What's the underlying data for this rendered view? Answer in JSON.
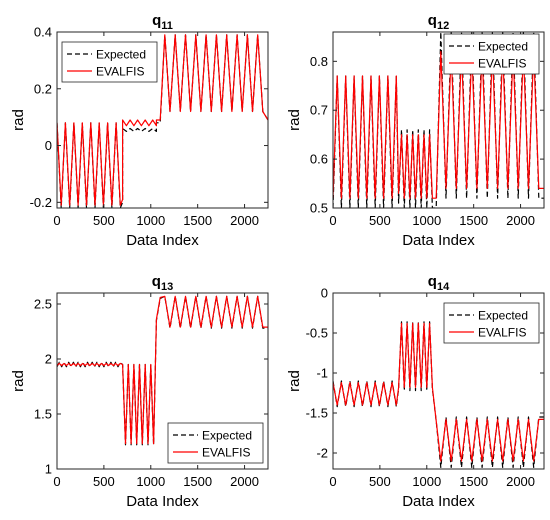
{
  "chart_data": [
    {
      "type": "line",
      "title_base": "q",
      "title_sub": "11",
      "xlabel": "Data Index",
      "ylabel": "rad",
      "xlim": [
        0,
        2250
      ],
      "ylim": [
        -0.22,
        0.4
      ],
      "xticks": [
        "0",
        "500",
        "1000",
        "1500",
        "2000"
      ],
      "yticks": [
        "-0.2",
        "0",
        "0.2",
        "0.4"
      ],
      "legend_position": "top-left",
      "series": [
        {
          "name": "Expected",
          "color": "#000000",
          "style": "dashed",
          "x": [
            0,
            45,
            90,
            135,
            180,
            225,
            270,
            315,
            360,
            405,
            450,
            495,
            540,
            585,
            630,
            675,
            700,
            700,
            740,
            780,
            820,
            860,
            900,
            940,
            980,
            1020,
            1060,
            1060,
            1100,
            1150,
            1205,
            1260,
            1315,
            1370,
            1425,
            1480,
            1535,
            1590,
            1645,
            1700,
            1755,
            1810,
            1865,
            1920,
            1975,
            2030,
            2085,
            2140,
            2195,
            2250
          ],
          "y": [
            0.08,
            -0.22,
            0.08,
            -0.22,
            0.08,
            -0.22,
            0.08,
            -0.22,
            0.08,
            -0.22,
            0.08,
            -0.22,
            0.08,
            -0.22,
            0.08,
            -0.22,
            -0.2,
            0.06,
            0.05,
            0.06,
            0.05,
            0.06,
            0.05,
            0.06,
            0.05,
            0.06,
            0.05,
            0.08,
            0.08,
            0.39,
            0.12,
            0.39,
            0.12,
            0.39,
            0.12,
            0.39,
            0.12,
            0.39,
            0.12,
            0.39,
            0.12,
            0.39,
            0.12,
            0.39,
            0.12,
            0.39,
            0.12,
            0.39,
            0.12,
            0.09
          ]
        },
        {
          "name": "EVALFIS",
          "color": "#ff0000",
          "style": "solid",
          "x": [
            0,
            45,
            90,
            135,
            180,
            225,
            270,
            315,
            360,
            405,
            450,
            495,
            540,
            585,
            630,
            675,
            700,
            700,
            740,
            780,
            820,
            860,
            900,
            940,
            980,
            1020,
            1060,
            1060,
            1100,
            1150,
            1205,
            1260,
            1315,
            1370,
            1425,
            1480,
            1535,
            1590,
            1645,
            1700,
            1755,
            1810,
            1865,
            1920,
            1975,
            2030,
            2085,
            2140,
            2195,
            2250
          ],
          "y": [
            0.08,
            -0.21,
            0.08,
            -0.21,
            0.08,
            -0.21,
            0.08,
            -0.21,
            0.08,
            -0.21,
            0.08,
            -0.21,
            0.08,
            -0.21,
            0.08,
            -0.21,
            -0.19,
            0.09,
            0.07,
            0.09,
            0.07,
            0.09,
            0.07,
            0.09,
            0.07,
            0.09,
            0.07,
            0.09,
            0.09,
            0.39,
            0.12,
            0.39,
            0.12,
            0.39,
            0.12,
            0.39,
            0.12,
            0.39,
            0.12,
            0.39,
            0.12,
            0.39,
            0.12,
            0.39,
            0.12,
            0.39,
            0.12,
            0.39,
            0.12,
            0.09
          ]
        }
      ]
    },
    {
      "type": "line",
      "title_base": "q",
      "title_sub": "12",
      "xlabel": "Data Index",
      "ylabel": "rad",
      "xlim": [
        0,
        2250
      ],
      "ylim": [
        0.5,
        0.86
      ],
      "xticks": [
        "0",
        "500",
        "1000",
        "1500",
        "2000"
      ],
      "yticks": [
        "0.5",
        "0.6",
        "0.7",
        "0.8"
      ],
      "legend_position": "top-right",
      "series": [
        {
          "name": "Expected",
          "color": "#000000",
          "style": "dashed",
          "x": [
            0,
            45,
            90,
            135,
            180,
            225,
            270,
            315,
            360,
            405,
            450,
            495,
            540,
            585,
            630,
            675,
            700,
            730,
            760,
            790,
            820,
            850,
            880,
            910,
            940,
            970,
            1000,
            1030,
            1060,
            1100,
            1150,
            1205,
            1260,
            1315,
            1370,
            1425,
            1480,
            1535,
            1590,
            1645,
            1700,
            1755,
            1810,
            1865,
            1920,
            1975,
            2030,
            2085,
            2140,
            2195,
            2250
          ],
          "y": [
            0.5,
            0.77,
            0.5,
            0.77,
            0.5,
            0.77,
            0.5,
            0.77,
            0.5,
            0.77,
            0.5,
            0.77,
            0.5,
            0.77,
            0.5,
            0.77,
            0.51,
            0.66,
            0.5,
            0.66,
            0.5,
            0.66,
            0.5,
            0.66,
            0.5,
            0.66,
            0.5,
            0.66,
            0.5,
            0.5,
            0.86,
            0.52,
            0.86,
            0.52,
            0.86,
            0.52,
            0.86,
            0.52,
            0.86,
            0.52,
            0.86,
            0.52,
            0.86,
            0.52,
            0.86,
            0.52,
            0.86,
            0.52,
            0.86,
            0.52,
            0.52
          ]
        },
        {
          "name": "EVALFIS",
          "color": "#ff0000",
          "style": "solid",
          "x": [
            0,
            45,
            90,
            135,
            180,
            225,
            270,
            315,
            360,
            405,
            450,
            495,
            540,
            585,
            630,
            675,
            700,
            730,
            760,
            790,
            820,
            850,
            880,
            910,
            940,
            970,
            1000,
            1030,
            1060,
            1100,
            1150,
            1205,
            1260,
            1315,
            1370,
            1425,
            1480,
            1535,
            1590,
            1645,
            1700,
            1755,
            1810,
            1865,
            1920,
            1975,
            2030,
            2085,
            2140,
            2195,
            2250
          ],
          "y": [
            0.52,
            0.77,
            0.52,
            0.77,
            0.52,
            0.77,
            0.52,
            0.77,
            0.52,
            0.77,
            0.52,
            0.77,
            0.52,
            0.77,
            0.52,
            0.77,
            0.53,
            0.65,
            0.52,
            0.65,
            0.52,
            0.65,
            0.52,
            0.65,
            0.52,
            0.65,
            0.52,
            0.65,
            0.52,
            0.52,
            0.82,
            0.54,
            0.82,
            0.54,
            0.82,
            0.54,
            0.82,
            0.54,
            0.82,
            0.54,
            0.82,
            0.54,
            0.82,
            0.54,
            0.82,
            0.54,
            0.82,
            0.54,
            0.82,
            0.54,
            0.54
          ]
        }
      ]
    },
    {
      "type": "line",
      "title_base": "q",
      "title_sub": "13",
      "xlabel": "Data Index",
      "ylabel": "rad",
      "xlim": [
        0,
        2250
      ],
      "ylim": [
        1,
        2.6
      ],
      "xticks": [
        "0",
        "500",
        "1000",
        "1500",
        "2000"
      ],
      "yticks": [
        "1",
        "1.5",
        "2",
        "2.5"
      ],
      "legend_position": "bottom-right",
      "series": [
        {
          "name": "Expected",
          "color": "#000000",
          "style": "dashed",
          "x": [
            0,
            25,
            50,
            75,
            100,
            125,
            150,
            175,
            200,
            225,
            250,
            275,
            300,
            325,
            350,
            375,
            400,
            425,
            450,
            475,
            500,
            525,
            550,
            575,
            600,
            625,
            650,
            675,
            700,
            730,
            760,
            790,
            820,
            850,
            880,
            910,
            940,
            970,
            1000,
            1030,
            1060,
            1100,
            1150,
            1205,
            1260,
            1315,
            1370,
            1425,
            1480,
            1535,
            1590,
            1645,
            1700,
            1755,
            1810,
            1865,
            1920,
            1975,
            2030,
            2085,
            2140,
            2195,
            2250
          ],
          "y": [
            1.93,
            1.97,
            1.93,
            1.97,
            1.93,
            1.97,
            1.93,
            1.97,
            1.93,
            1.97,
            1.93,
            1.97,
            1.93,
            1.97,
            1.93,
            1.97,
            1.93,
            1.97,
            1.93,
            1.97,
            1.93,
            1.97,
            1.93,
            1.97,
            1.93,
            1.97,
            1.93,
            1.97,
            1.95,
            1.22,
            1.95,
            1.22,
            1.95,
            1.22,
            1.95,
            1.22,
            1.95,
            1.22,
            1.95,
            1.22,
            2.35,
            2.55,
            2.57,
            2.28,
            2.57,
            2.28,
            2.57,
            2.28,
            2.57,
            2.28,
            2.57,
            2.28,
            2.57,
            2.28,
            2.57,
            2.28,
            2.57,
            2.28,
            2.57,
            2.28,
            2.57,
            2.28,
            2.28
          ]
        },
        {
          "name": "EVALFIS",
          "color": "#ff0000",
          "style": "solid",
          "x": [
            0,
            25,
            50,
            75,
            100,
            125,
            150,
            175,
            200,
            225,
            250,
            275,
            300,
            325,
            350,
            375,
            400,
            425,
            450,
            475,
            500,
            525,
            550,
            575,
            600,
            625,
            650,
            675,
            700,
            730,
            760,
            790,
            820,
            850,
            880,
            910,
            940,
            970,
            1000,
            1030,
            1060,
            1100,
            1150,
            1205,
            1260,
            1315,
            1370,
            1425,
            1480,
            1535,
            1590,
            1645,
            1700,
            1755,
            1810,
            1865,
            1920,
            1975,
            2030,
            2085,
            2140,
            2195,
            2250
          ],
          "y": [
            1.94,
            1.96,
            1.94,
            1.96,
            1.94,
            1.96,
            1.94,
            1.96,
            1.94,
            1.96,
            1.94,
            1.96,
            1.94,
            1.96,
            1.94,
            1.96,
            1.94,
            1.96,
            1.94,
            1.96,
            1.94,
            1.96,
            1.94,
            1.96,
            1.94,
            1.96,
            1.94,
            1.96,
            1.95,
            1.23,
            1.95,
            1.23,
            1.95,
            1.23,
            1.95,
            1.23,
            1.95,
            1.23,
            1.95,
            1.23,
            2.36,
            2.56,
            2.57,
            2.29,
            2.57,
            2.29,
            2.57,
            2.29,
            2.57,
            2.29,
            2.57,
            2.29,
            2.57,
            2.29,
            2.57,
            2.29,
            2.57,
            2.29,
            2.57,
            2.29,
            2.57,
            2.29,
            2.29
          ]
        }
      ]
    },
    {
      "type": "line",
      "title_base": "q",
      "title_sub": "14",
      "xlabel": "Data Index",
      "ylabel": "rad",
      "xlim": [
        0,
        2250
      ],
      "ylim": [
        -2.2,
        0
      ],
      "xticks": [
        "0",
        "500",
        "1000",
        "1500",
        "2000"
      ],
      "yticks": [
        "0",
        "-0.5",
        "-1",
        "-1.5",
        "-2"
      ],
      "legend_position": "top-right",
      "series": [
        {
          "name": "Expected",
          "color": "#000000",
          "style": "dashed",
          "x": [
            0,
            45,
            90,
            135,
            180,
            225,
            270,
            315,
            360,
            405,
            450,
            495,
            540,
            585,
            630,
            675,
            700,
            730,
            760,
            790,
            820,
            850,
            880,
            910,
            940,
            970,
            1000,
            1030,
            1060,
            1100,
            1150,
            1205,
            1260,
            1315,
            1370,
            1425,
            1480,
            1535,
            1590,
            1645,
            1700,
            1755,
            1810,
            1865,
            1920,
            1975,
            2030,
            2085,
            2140,
            2195,
            2250
          ],
          "y": [
            -1.1,
            -1.42,
            -1.1,
            -1.42,
            -1.1,
            -1.42,
            -1.1,
            -1.42,
            -1.1,
            -1.42,
            -1.1,
            -1.42,
            -1.1,
            -1.42,
            -1.1,
            -1.42,
            -1.2,
            -0.36,
            -1.22,
            -0.36,
            -1.22,
            -0.36,
            -1.22,
            -0.36,
            -1.22,
            -0.36,
            -1.22,
            -0.36,
            -1.2,
            -1.6,
            -2.18,
            -1.55,
            -2.18,
            -1.55,
            -2.18,
            -1.55,
            -2.18,
            -1.55,
            -2.18,
            -1.55,
            -2.18,
            -1.55,
            -2.18,
            -1.55,
            -2.18,
            -1.55,
            -2.18,
            -1.55,
            -2.18,
            -1.55,
            -1.55
          ]
        },
        {
          "name": "EVALFIS",
          "color": "#ff0000",
          "style": "solid",
          "x": [
            0,
            45,
            90,
            135,
            180,
            225,
            270,
            315,
            360,
            405,
            450,
            495,
            540,
            585,
            630,
            675,
            700,
            730,
            760,
            790,
            820,
            850,
            880,
            910,
            940,
            970,
            1000,
            1030,
            1060,
            1100,
            1150,
            1205,
            1260,
            1315,
            1370,
            1425,
            1480,
            1535,
            1590,
            1645,
            1700,
            1755,
            1810,
            1865,
            1920,
            1975,
            2030,
            2085,
            2140,
            2195,
            2250
          ],
          "y": [
            -1.12,
            -1.4,
            -1.12,
            -1.4,
            -1.12,
            -1.4,
            -1.12,
            -1.4,
            -1.12,
            -1.4,
            -1.12,
            -1.4,
            -1.12,
            -1.4,
            -1.12,
            -1.4,
            -1.18,
            -0.38,
            -1.18,
            -0.38,
            -1.18,
            -0.38,
            -1.18,
            -0.38,
            -1.18,
            -0.38,
            -1.18,
            -0.38,
            -1.18,
            -1.6,
            -2.1,
            -1.58,
            -2.1,
            -1.58,
            -2.1,
            -1.58,
            -2.1,
            -1.58,
            -2.1,
            -1.58,
            -2.1,
            -1.58,
            -2.1,
            -1.58,
            -2.1,
            -1.58,
            -2.1,
            -1.58,
            -2.1,
            -1.58,
            -1.58
          ]
        }
      ]
    }
  ]
}
